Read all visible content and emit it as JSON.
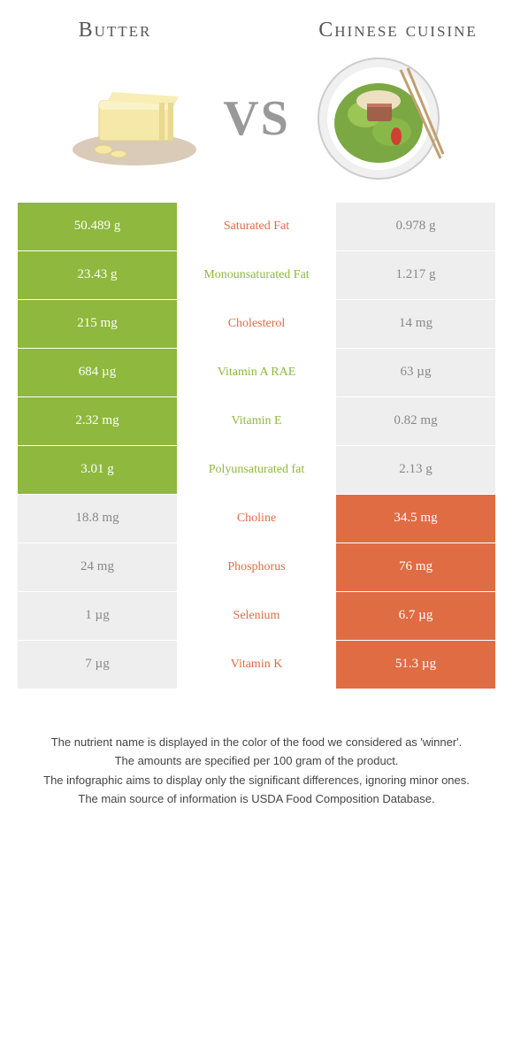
{
  "header": {
    "left_title": "Butter",
    "right_title": "Chinese cuisine",
    "vs_label": "VS"
  },
  "colors": {
    "green": "#8eb83e",
    "orange": "#e06c44",
    "grey": "#eeeeee"
  },
  "rows": [
    {
      "left": "50.489 g",
      "mid": "Saturated Fat",
      "right": "0.978 g",
      "left_bg": "green",
      "right_bg": "grey",
      "mid_color": "orange"
    },
    {
      "left": "23.43 g",
      "mid": "Monounsaturated Fat",
      "right": "1.217 g",
      "left_bg": "green",
      "right_bg": "grey",
      "mid_color": "green"
    },
    {
      "left": "215 mg",
      "mid": "Cholesterol",
      "right": "14 mg",
      "left_bg": "green",
      "right_bg": "grey",
      "mid_color": "orange"
    },
    {
      "left": "684 µg",
      "mid": "Vitamin A RAE",
      "right": "63 µg",
      "left_bg": "green",
      "right_bg": "grey",
      "mid_color": "green"
    },
    {
      "left": "2.32 mg",
      "mid": "Vitamin E",
      "right": "0.82 mg",
      "left_bg": "green",
      "right_bg": "grey",
      "mid_color": "green"
    },
    {
      "left": "3.01 g",
      "mid": "Polyunsaturated fat",
      "right": "2.13 g",
      "left_bg": "green",
      "right_bg": "grey",
      "mid_color": "green"
    },
    {
      "left": "18.8 mg",
      "mid": "Choline",
      "right": "34.5 mg",
      "left_bg": "grey",
      "right_bg": "orange",
      "mid_color": "orange"
    },
    {
      "left": "24 mg",
      "mid": "Phosphorus",
      "right": "76 mg",
      "left_bg": "grey",
      "right_bg": "orange",
      "mid_color": "orange"
    },
    {
      "left": "1 µg",
      "mid": "Selenium",
      "right": "6.7 µg",
      "left_bg": "grey",
      "right_bg": "orange",
      "mid_color": "orange"
    },
    {
      "left": "7 µg",
      "mid": "Vitamin K",
      "right": "51.3 µg",
      "left_bg": "grey",
      "right_bg": "orange",
      "mid_color": "orange"
    }
  ],
  "footer": {
    "line1": "The nutrient name is displayed in the color of the food we considered as 'winner'.",
    "line2": "The amounts are specified per 100 gram of the product.",
    "line3": "The infographic aims to display only the significant differences, ignoring minor ones.",
    "line4": "The main source of information is USDA Food Composition Database."
  }
}
